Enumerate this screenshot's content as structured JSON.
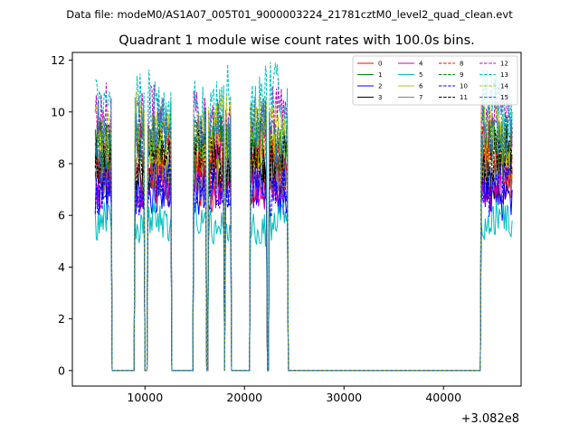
{
  "chart_data": {
    "type": "line",
    "suptitle": "Data file: modeM0/AS1A07_005T01_9000003224_21781cztM0_level2_quad_clean.evt",
    "title": "Quadrant 1 module wise count rates with 100.0s bins.",
    "xlabel": "",
    "ylabel": "",
    "x_offset_label": "+3.082e8",
    "xlim": [
      2700,
      47800
    ],
    "ylim": [
      -0.6,
      12.3
    ],
    "xticks": [
      10000,
      20000,
      30000,
      40000
    ],
    "xtick_labels": [
      "10000",
      "20000",
      "30000",
      "40000"
    ],
    "yticks": [
      0,
      2,
      4,
      6,
      8,
      10,
      12
    ],
    "ytick_labels": [
      "0",
      "2",
      "4",
      "6",
      "8",
      "10",
      "12"
    ],
    "bin_seconds": 100,
    "x_start": 5000,
    "x_end": 46900,
    "good_time_intervals": [
      [
        5000,
        6600
      ],
      [
        9000,
        9900
      ],
      [
        10300,
        12600
      ],
      [
        14900,
        16100
      ],
      [
        16400,
        17900
      ],
      [
        18100,
        18600
      ],
      [
        20600,
        22200
      ],
      [
        22500,
        24300
      ],
      [
        43800,
        46900
      ]
    ],
    "baseline_zero": 0,
    "series": [
      {
        "name": "0",
        "color": "#ff0000",
        "dash": "solid",
        "level": 7.3
      },
      {
        "name": "1",
        "color": "#008000",
        "dash": "solid",
        "level": 8.8
      },
      {
        "name": "2",
        "color": "#0000ff",
        "dash": "solid",
        "level": 6.9
      },
      {
        "name": "3",
        "color": "#000000",
        "dash": "solid",
        "level": 7.9
      },
      {
        "name": "4",
        "color": "#bf00bf",
        "dash": "solid",
        "level": 7.2
      },
      {
        "name": "5",
        "color": "#00bfbf",
        "dash": "solid",
        "level": 5.7
      },
      {
        "name": "6",
        "color": "#bfbf00",
        "dash": "solid",
        "level": 8.5
      },
      {
        "name": "7",
        "color": "#808080",
        "dash": "solid",
        "level": 7.6
      },
      {
        "name": "8",
        "color": "#ff0000",
        "dash": "dashed",
        "level": 8.2
      },
      {
        "name": "9",
        "color": "#008000",
        "dash": "dashed",
        "level": 9.0
      },
      {
        "name": "10",
        "color": "#0000ff",
        "dash": "dashed",
        "level": 7.1
      },
      {
        "name": "11",
        "color": "#000000",
        "dash": "dashed",
        "level": 8.3
      },
      {
        "name": "12",
        "color": "#bf00bf",
        "dash": "dashed",
        "level": 9.7
      },
      {
        "name": "13",
        "color": "#00bfbf",
        "dash": "dashed",
        "level": 10.3
      },
      {
        "name": "14",
        "color": "#bfbf00",
        "dash": "dashed",
        "level": 9.3
      },
      {
        "name": "15",
        "color": "#1f77b4",
        "dash": "dashed",
        "level": 9.2
      }
    ],
    "legend_location": "top-right",
    "legend_columns": 4,
    "grid": false
  }
}
